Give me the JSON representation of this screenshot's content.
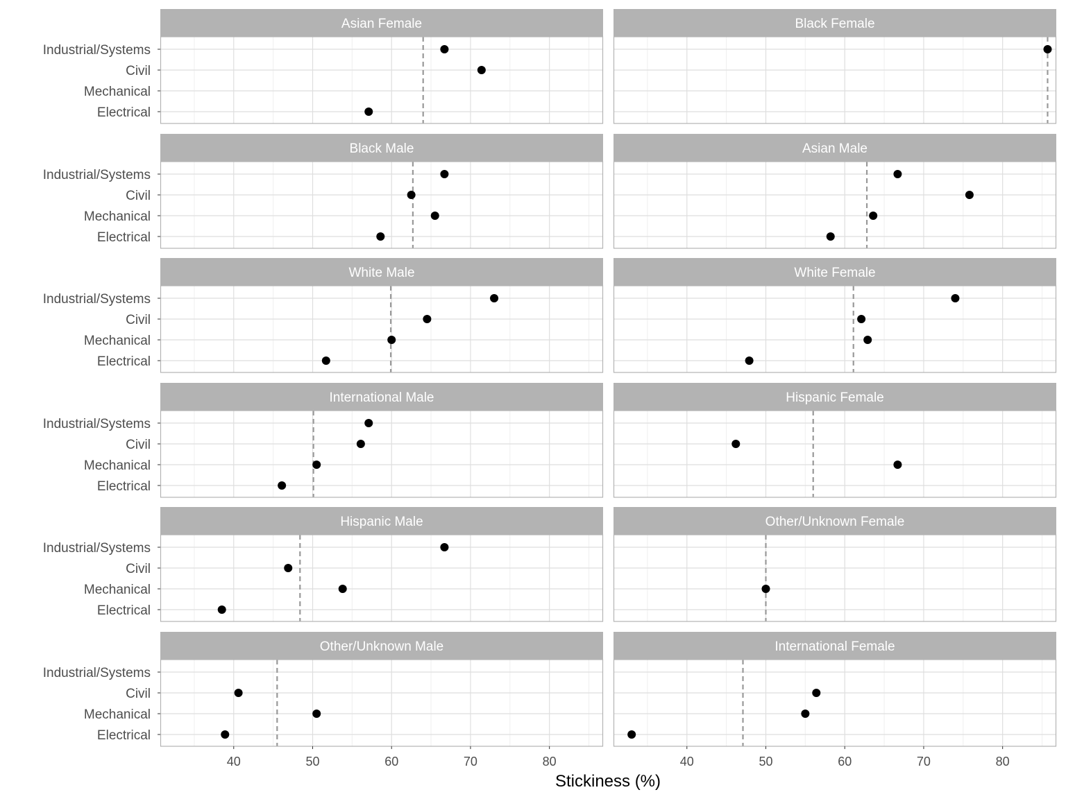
{
  "chart_data": {
    "type": "scatter",
    "xlabel": "Stickiness (%)",
    "ylabel": "",
    "xlim": [
      30.7,
      86.8
    ],
    "x_ticks": [
      40,
      50,
      60,
      70,
      80
    ],
    "categories": [
      "Industrial/Systems",
      "Civil",
      "Mechanical",
      "Electrical"
    ],
    "grid": true,
    "layout": "facets in 6 rows x 2 columns",
    "colors": {
      "strip_bg": "#b3b3b3",
      "point": "#000000",
      "mean_line": "#999999",
      "grid_major": "#dedede",
      "grid_minor": "#efefef",
      "panel_border": "#b3b3b3"
    },
    "facets": [
      {
        "title": "Asian Female",
        "mean": 64.0,
        "points": {
          "Industrial/Systems": 66.7,
          "Civil": 71.4,
          "Mechanical": null,
          "Electrical": 57.1
        }
      },
      {
        "title": "Black Female",
        "mean": 85.7,
        "points": {
          "Industrial/Systems": 85.7,
          "Civil": null,
          "Mechanical": null,
          "Electrical": null
        }
      },
      {
        "title": "Black Male",
        "mean": 62.7,
        "points": {
          "Industrial/Systems": 66.7,
          "Civil": 62.5,
          "Mechanical": 65.5,
          "Electrical": 58.6
        }
      },
      {
        "title": "Asian Male",
        "mean": 62.8,
        "points": {
          "Industrial/Systems": 66.7,
          "Civil": 75.8,
          "Mechanical": 63.6,
          "Electrical": 58.2
        }
      },
      {
        "title": "White Male",
        "mean": 59.9,
        "points": {
          "Industrial/Systems": 73.0,
          "Civil": 64.5,
          "Mechanical": 60.0,
          "Electrical": 51.7
        }
      },
      {
        "title": "White Female",
        "mean": 61.1,
        "points": {
          "Industrial/Systems": 74.0,
          "Civil": 62.1,
          "Mechanical": 62.9,
          "Electrical": 47.9
        }
      },
      {
        "title": "International Male",
        "mean": 50.1,
        "points": {
          "Industrial/Systems": 57.1,
          "Civil": 56.1,
          "Mechanical": 50.5,
          "Electrical": 46.1
        }
      },
      {
        "title": "Hispanic Female",
        "mean": 56.0,
        "points": {
          "Industrial/Systems": null,
          "Civil": 46.2,
          "Mechanical": 66.7,
          "Electrical": null
        }
      },
      {
        "title": "Hispanic Male",
        "mean": 48.4,
        "points": {
          "Industrial/Systems": 66.7,
          "Civil": 46.9,
          "Mechanical": 53.8,
          "Electrical": 38.5
        }
      },
      {
        "title": "Other/Unknown Female",
        "mean": 50.0,
        "points": {
          "Industrial/Systems": null,
          "Civil": null,
          "Mechanical": 50.0,
          "Electrical": null
        }
      },
      {
        "title": "Other/Unknown Male",
        "mean": 45.5,
        "points": {
          "Industrial/Systems": null,
          "Civil": 40.6,
          "Mechanical": 50.5,
          "Electrical": 38.9
        }
      },
      {
        "title": "International Female",
        "mean": 47.1,
        "points": {
          "Industrial/Systems": null,
          "Civil": 56.4,
          "Mechanical": 55.0,
          "Electrical": 33.0
        }
      }
    ]
  }
}
